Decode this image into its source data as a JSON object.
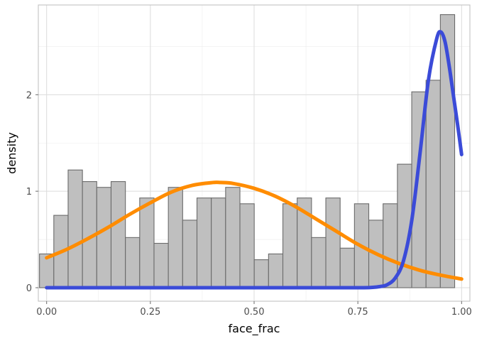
{
  "chart_data": {
    "type": "bar",
    "subtype": "histogram-with-density-curves",
    "xlabel": "face_frac",
    "ylabel": "density",
    "xlim": [
      -0.02,
      1.02
    ],
    "ylim": [
      -0.14,
      2.93
    ],
    "x_ticks": [
      0.0,
      0.25,
      0.5,
      0.75,
      1.0
    ],
    "x_tick_labels": [
      "0.00",
      "0.25",
      "0.50",
      "0.75",
      "1.00"
    ],
    "y_ticks": [
      0,
      1,
      2
    ],
    "y_tick_labels": [
      "0",
      "1",
      "2"
    ],
    "grid": true,
    "bin_width": 0.0345,
    "bin_start": -0.0172,
    "histogram_values": [
      0.35,
      0.75,
      1.22,
      1.1,
      1.04,
      1.1,
      0.52,
      0.93,
      0.46,
      1.04,
      0.7,
      0.93,
      0.93,
      1.04,
      0.87,
      0.29,
      0.35,
      0.87,
      0.93,
      0.52,
      0.93,
      0.41,
      0.87,
      0.7,
      0.87,
      1.28,
      2.03,
      2.15,
      2.83
    ],
    "bar_fill": "#bfbfbf",
    "bar_outline": "#6b6b6b",
    "series": [
      {
        "color": "#ff8c00",
        "x": [
          0.0,
          0.05,
          0.1,
          0.15,
          0.2,
          0.25,
          0.3,
          0.35,
          0.4,
          0.42,
          0.45,
          0.5,
          0.55,
          0.6,
          0.65,
          0.7,
          0.75,
          0.8,
          0.85,
          0.9,
          0.95,
          1.0
        ],
        "values": [
          0.31,
          0.4,
          0.51,
          0.63,
          0.76,
          0.88,
          0.99,
          1.06,
          1.09,
          1.09,
          1.08,
          1.03,
          0.95,
          0.84,
          0.71,
          0.58,
          0.45,
          0.34,
          0.25,
          0.18,
          0.13,
          0.09
        ]
      },
      {
        "color": "#3b4bd8",
        "x": [
          0.0,
          0.1,
          0.2,
          0.3,
          0.4,
          0.5,
          0.6,
          0.7,
          0.75,
          0.78,
          0.8,
          0.82,
          0.84,
          0.86,
          0.88,
          0.9,
          0.92,
          0.94,
          0.95,
          0.96,
          0.97,
          0.98,
          0.99,
          1.0
        ],
        "values": [
          0.0,
          0.0,
          0.0,
          0.0,
          0.0,
          0.0,
          0.0,
          0.0,
          0.0,
          0.002,
          0.01,
          0.03,
          0.1,
          0.28,
          0.7,
          1.4,
          2.15,
          2.58,
          2.65,
          2.55,
          2.3,
          2.0,
          1.7,
          1.38
        ]
      }
    ]
  }
}
